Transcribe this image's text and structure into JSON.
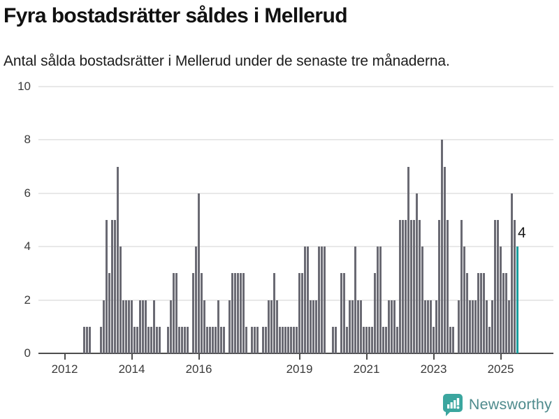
{
  "header": {
    "title": "Fyra bostadsrätter såldes i Mellerud",
    "subtitle": "Antal sålda bostadsrätter i Mellerud under de senaste tre månaderna."
  },
  "chart_data": {
    "type": "bar",
    "title": "Fyra bostadsrätter såldes i Mellerud",
    "xlabel": "",
    "ylabel": "",
    "ylim": [
      0,
      10
    ],
    "yticks": [
      0,
      2,
      4,
      6,
      8,
      10
    ],
    "grid": "horizontal",
    "frequency": "monthly",
    "x_start": "2012-08",
    "x_end": "2025-07",
    "values": [
      1,
      1,
      1,
      0,
      0,
      0,
      1,
      2,
      5,
      3,
      5,
      5,
      7,
      4,
      2,
      2,
      2,
      2,
      1,
      1,
      2,
      2,
      2,
      1,
      1,
      2,
      1,
      1,
      0,
      0,
      1,
      2,
      3,
      3,
      1,
      1,
      1,
      1,
      0,
      3,
      4,
      6,
      3,
      2,
      1,
      1,
      1,
      1,
      2,
      1,
      1,
      0,
      2,
      3,
      3,
      3,
      3,
      3,
      1,
      0,
      1,
      1,
      1,
      0,
      1,
      1,
      2,
      2,
      3,
      2,
      1,
      1,
      1,
      1,
      1,
      1,
      1,
      3,
      3,
      4,
      4,
      2,
      2,
      2,
      4,
      4,
      4,
      0,
      0,
      1,
      1,
      0,
      3,
      3,
      1,
      2,
      2,
      4,
      2,
      2,
      1,
      1,
      1,
      1,
      3,
      4,
      4,
      1,
      1,
      2,
      2,
      2,
      1,
      5,
      5,
      5,
      7,
      5,
      5,
      6,
      5,
      4,
      2,
      2,
      2,
      1,
      2,
      5,
      8,
      7,
      5,
      1,
      1,
      0,
      2,
      5,
      4,
      3,
      2,
      2,
      2,
      3,
      3,
      3,
      2,
      1,
      2,
      5,
      5,
      4,
      3,
      3,
      2,
      6,
      5,
      4
    ],
    "xticks": [
      {
        "label": "2012",
        "month_offset": -7
      },
      {
        "label": "2014",
        "month_offset": 17
      },
      {
        "label": "2016",
        "month_offset": 41
      },
      {
        "label": "2019",
        "month_offset": 77
      },
      {
        "label": "2021",
        "month_offset": 101
      },
      {
        "label": "2023",
        "month_offset": 125
      },
      {
        "label": "2025",
        "month_offset": 149
      }
    ],
    "bar_color": "#6a6a73",
    "highlight": {
      "index": 155,
      "value": 4,
      "label": "4",
      "color": "#1a9e9e"
    },
    "gridline_color": "#e8e8e8",
    "axis_color": "#4d4d4d"
  },
  "footer": {
    "brand": "Newsworthy",
    "logo_icon": "newsworthy-speech-bubble-barchart-icon",
    "logo_color": "#3ba69f",
    "text_color": "#4f8b8d"
  }
}
